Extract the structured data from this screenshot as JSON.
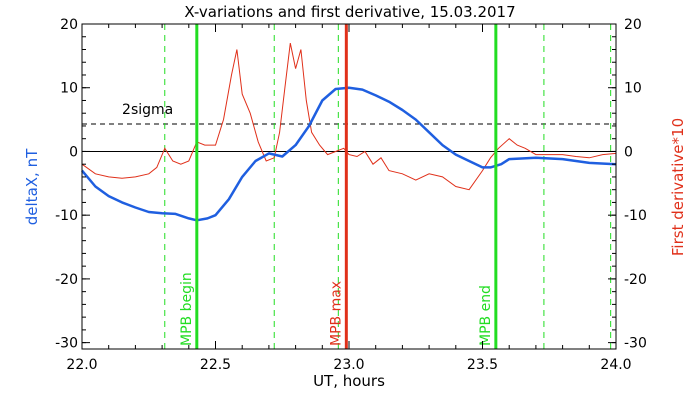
{
  "chart_data": {
    "type": "line",
    "title": "X-variations and first derivative, 15.03.2017",
    "xlabel": "UT, hours",
    "ylabel": "deltaX, nT",
    "y2label": "First derivative*10",
    "xlim": [
      22.0,
      24.0
    ],
    "ylim": [
      -31,
      20
    ],
    "x_ticks": [
      "22.0",
      "22.5",
      "23.0",
      "23.5",
      "24.0"
    ],
    "y_ticks": [
      "20",
      "10",
      "0",
      "-10",
      "-20",
      "-30"
    ],
    "grid": false,
    "colors": {
      "deltaX": "#1f5fe0",
      "derivative": "#e0301a",
      "mpb_lines": "#22dd22",
      "max_line": "#e0301a",
      "sigma": "#000000"
    },
    "sigma_label": "2sigma",
    "sigma_level": 4.3,
    "zero_level": 0,
    "markers": [
      {
        "label": "MPB begin",
        "x": 22.43,
        "style": "solid",
        "color": "#22dd22"
      },
      {
        "label": "MPB max",
        "x": 22.99,
        "style": "solid",
        "color": "#e0301a"
      },
      {
        "label": "MPB end",
        "x": 23.55,
        "style": "solid",
        "color": "#22dd22"
      }
    ],
    "dashed_lines": [
      22.31,
      22.72,
      22.96,
      23.73,
      23.98
    ],
    "series": [
      {
        "name": "deltaX",
        "axis": "left",
        "x": [
          22.0,
          22.05,
          22.1,
          22.15,
          22.2,
          22.25,
          22.3,
          22.35,
          22.4,
          22.43,
          22.47,
          22.5,
          22.55,
          22.6,
          22.65,
          22.7,
          22.75,
          22.8,
          22.85,
          22.9,
          22.95,
          23.0,
          23.05,
          23.1,
          23.15,
          23.2,
          23.25,
          23.3,
          23.35,
          23.4,
          23.45,
          23.5,
          23.53,
          23.57,
          23.6,
          23.7,
          23.8,
          23.9,
          24.0
        ],
        "values": [
          -3.0,
          -5.5,
          -7.0,
          -8.0,
          -8.8,
          -9.5,
          -9.7,
          -9.8,
          -10.5,
          -10.8,
          -10.5,
          -10.0,
          -7.5,
          -4.0,
          -1.5,
          -0.3,
          -0.8,
          1.0,
          4.0,
          8.0,
          9.8,
          10.0,
          9.7,
          8.8,
          7.8,
          6.5,
          5.0,
          3.0,
          1.0,
          -0.5,
          -1.5,
          -2.5,
          -2.5,
          -2.0,
          -1.2,
          -1.0,
          -1.2,
          -1.8,
          -2.0
        ]
      },
      {
        "name": "First derivative*10",
        "axis": "right",
        "x": [
          22.0,
          22.05,
          22.1,
          22.15,
          22.2,
          22.25,
          22.28,
          22.31,
          22.34,
          22.37,
          22.4,
          22.43,
          22.46,
          22.5,
          22.53,
          22.56,
          22.58,
          22.6,
          22.63,
          22.66,
          22.69,
          22.72,
          22.74,
          22.76,
          22.78,
          22.8,
          22.82,
          22.84,
          22.86,
          22.89,
          22.92,
          22.95,
          22.98,
          23.0,
          23.03,
          23.06,
          23.09,
          23.12,
          23.15,
          23.2,
          23.25,
          23.3,
          23.35,
          23.4,
          23.45,
          23.5,
          23.53,
          23.56,
          23.6,
          23.63,
          23.66,
          23.7,
          23.75,
          23.8,
          23.85,
          23.9,
          23.95,
          24.0
        ],
        "values": [
          -2.0,
          -3.5,
          -4.0,
          -4.2,
          -4.0,
          -3.5,
          -2.5,
          0.5,
          -1.5,
          -2.0,
          -1.5,
          1.5,
          1.0,
          1.0,
          5.0,
          12.0,
          16.0,
          9.0,
          6.0,
          1.5,
          -1.5,
          -1.0,
          3.0,
          10.0,
          17.0,
          13.0,
          16.0,
          8.0,
          3.0,
          1.0,
          -0.5,
          0.0,
          0.5,
          -0.5,
          -0.8,
          0.0,
          -2.0,
          -1.0,
          -3.0,
          -3.5,
          -4.5,
          -3.5,
          -4.0,
          -5.5,
          -6.0,
          -3.0,
          -1.0,
          0.5,
          2.0,
          1.0,
          0.5,
          -0.5,
          -0.5,
          -0.5,
          -0.8,
          -1.0,
          -0.5,
          -0.3
        ]
      }
    ]
  }
}
